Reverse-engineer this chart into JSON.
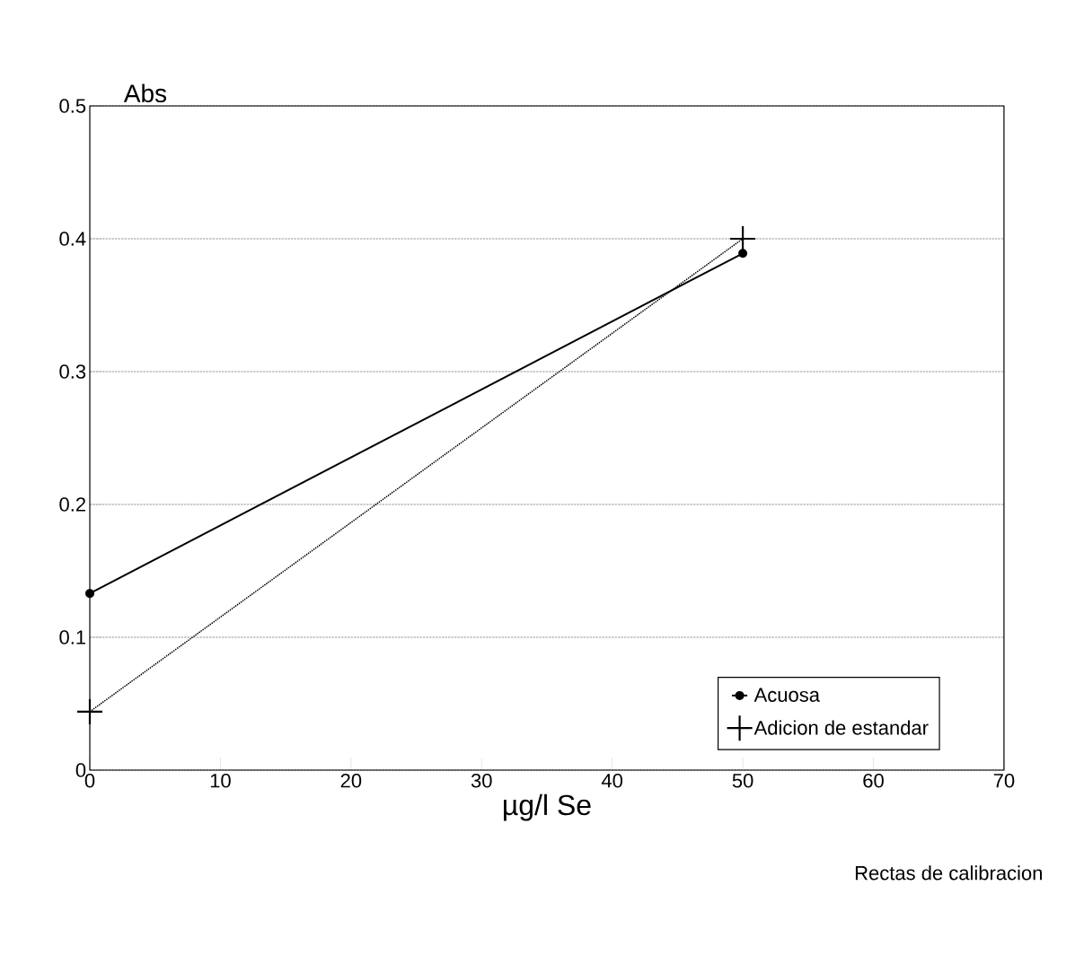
{
  "chart_data": {
    "type": "line",
    "xlabel": "µg/l Se",
    "ylabel": "Abs",
    "x": [
      0,
      50
    ],
    "series": [
      {
        "name": "Acuosa",
        "color": "#000000",
        "values": [
          0.133,
          0.389
        ],
        "marker": "circle",
        "line_style": "solid"
      },
      {
        "name": "Adicion de estandar",
        "color": "#000000",
        "values": [
          0.044,
          0.4
        ],
        "marker": "cross",
        "line_style": "dotted"
      }
    ],
    "xlim": [
      0,
      70
    ],
    "xticks": [
      0,
      10,
      20,
      30,
      40,
      50,
      60,
      70
    ],
    "ylim": [
      0,
      0.5
    ],
    "yticks": [
      0,
      0.1,
      0.2,
      0.3,
      0.4,
      0.5
    ],
    "grid": "y",
    "legend": "bottom right",
    "annotations": [
      "Rectas de calibracion"
    ]
  }
}
